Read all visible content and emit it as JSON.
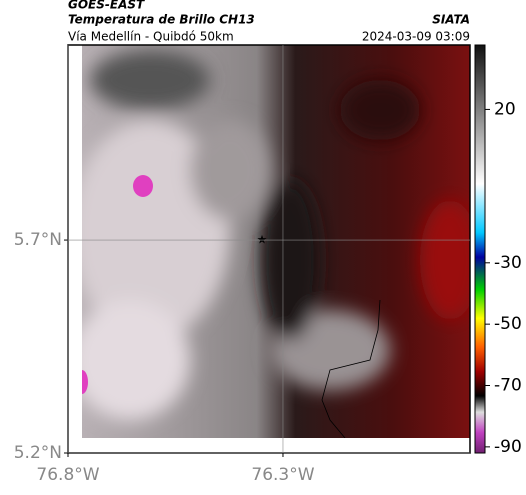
{
  "header": {
    "source": "GOES-EAST",
    "title": "Temperatura de Brillo CH13",
    "org": "SIATA",
    "subtitle": "Vía Medellín - Quibdó 50km",
    "datetime": "2024-03-09 03:09"
  },
  "map": {
    "latlim": [
      5.2,
      6.158
    ],
    "lonlim": [
      -76.8,
      -75.865
    ],
    "latticks": [
      {
        "value": 5.2,
        "label": "5.2°N"
      },
      {
        "value": 5.7,
        "label": "5.7°N"
      }
    ],
    "lonticks": [
      {
        "value": -76.8,
        "label": "76.8°W"
      },
      {
        "value": -76.3,
        "label": "76.3°W"
      }
    ],
    "grid": true
  },
  "colorbar": {
    "lim": [
      -92,
      41
    ],
    "ticks": [
      20,
      -30,
      -50,
      -70,
      -90
    ]
  }
}
